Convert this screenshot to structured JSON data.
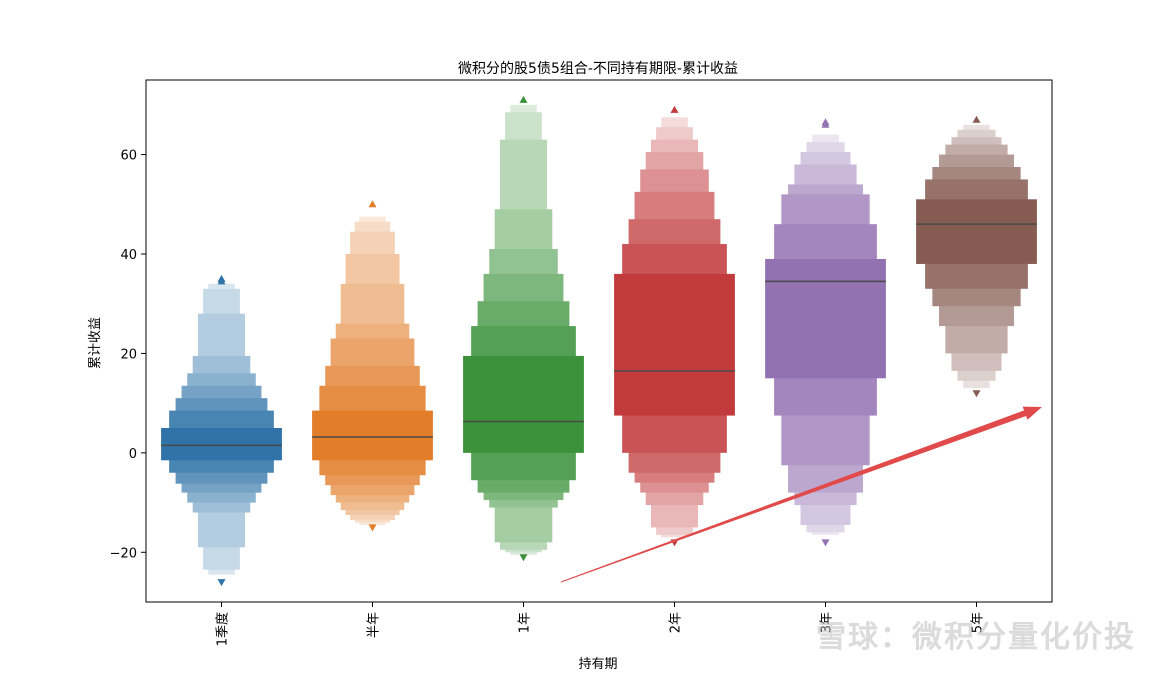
{
  "chart_data": {
    "type": "boxen",
    "title": "微积分的股5债5组合-不同持有期限-累计收益",
    "xlabel": "持有期",
    "ylabel": "累计收益",
    "ylim": [
      -30,
      75
    ],
    "yticks": [
      -20,
      0,
      20,
      40,
      60
    ],
    "grid": false,
    "categories": [
      "1季度",
      "半年",
      "1年",
      "2年",
      "3年",
      "5年"
    ],
    "colors": [
      "#2f73a8",
      "#e27e2a",
      "#3b923b",
      "#c23b3c",
      "#9372b2",
      "#865b52"
    ],
    "medians": [
      1.5,
      3.2,
      6.3,
      16.5,
      34.5,
      46
    ],
    "outliers": [
      [
        35,
        34.5,
        -26
      ],
      [
        50,
        -15
      ],
      [
        71,
        -21
      ],
      [
        69,
        -18
      ],
      [
        66.5,
        66,
        -18
      ],
      [
        67,
        12
      ]
    ],
    "boxes": [
      {
        "levels": [
          [
            -1.5,
            5
          ],
          [
            -4,
            8.5
          ],
          [
            -6.2,
            11
          ],
          [
            -8,
            13.5
          ],
          [
            -10,
            16
          ],
          [
            -12,
            19.5
          ],
          [
            -19,
            28
          ],
          [
            -23.5,
            33
          ],
          [
            -24.5,
            34
          ]
        ]
      },
      {
        "levels": [
          [
            -1.5,
            8.5
          ],
          [
            -4.5,
            13.5
          ],
          [
            -6.5,
            17.5
          ],
          [
            -8.5,
            23
          ],
          [
            -10,
            26
          ],
          [
            -11.5,
            34
          ],
          [
            -12.5,
            40
          ],
          [
            -13.5,
            44.5
          ],
          [
            -14,
            46.5
          ],
          [
            -14.5,
            47.5
          ]
        ]
      },
      {
        "levels": [
          [
            0,
            19.5
          ],
          [
            -5.5,
            25.5
          ],
          [
            -8,
            30.5
          ],
          [
            -9.5,
            36
          ],
          [
            -11,
            41
          ],
          [
            -18,
            49
          ],
          [
            -19.5,
            63
          ],
          [
            -20,
            68.5
          ],
          [
            -20.5,
            70
          ]
        ]
      },
      {
        "levels": [
          [
            7.5,
            36
          ],
          [
            0,
            42
          ],
          [
            -4,
            47
          ],
          [
            -6,
            52.5
          ],
          [
            -8,
            57
          ],
          [
            -10.5,
            60.5
          ],
          [
            -15,
            63
          ],
          [
            -16.5,
            65.5
          ],
          [
            -17,
            67.5
          ]
        ]
      },
      {
        "levels": [
          [
            15,
            39
          ],
          [
            7.5,
            46
          ],
          [
            -2.5,
            52
          ],
          [
            -8,
            54
          ],
          [
            -10.5,
            58
          ],
          [
            -14.5,
            60.5
          ],
          [
            -16,
            62.5
          ],
          [
            -16.5,
            64
          ]
        ]
      },
      {
        "levels": [
          [
            38,
            51
          ],
          [
            33,
            55
          ],
          [
            29.5,
            57.5
          ],
          [
            25.5,
            60
          ],
          [
            20,
            62
          ],
          [
            16.5,
            63.5
          ],
          [
            14.5,
            65
          ],
          [
            13,
            66
          ]
        ]
      }
    ]
  },
  "watermark": "雪球：微积分量化价投"
}
